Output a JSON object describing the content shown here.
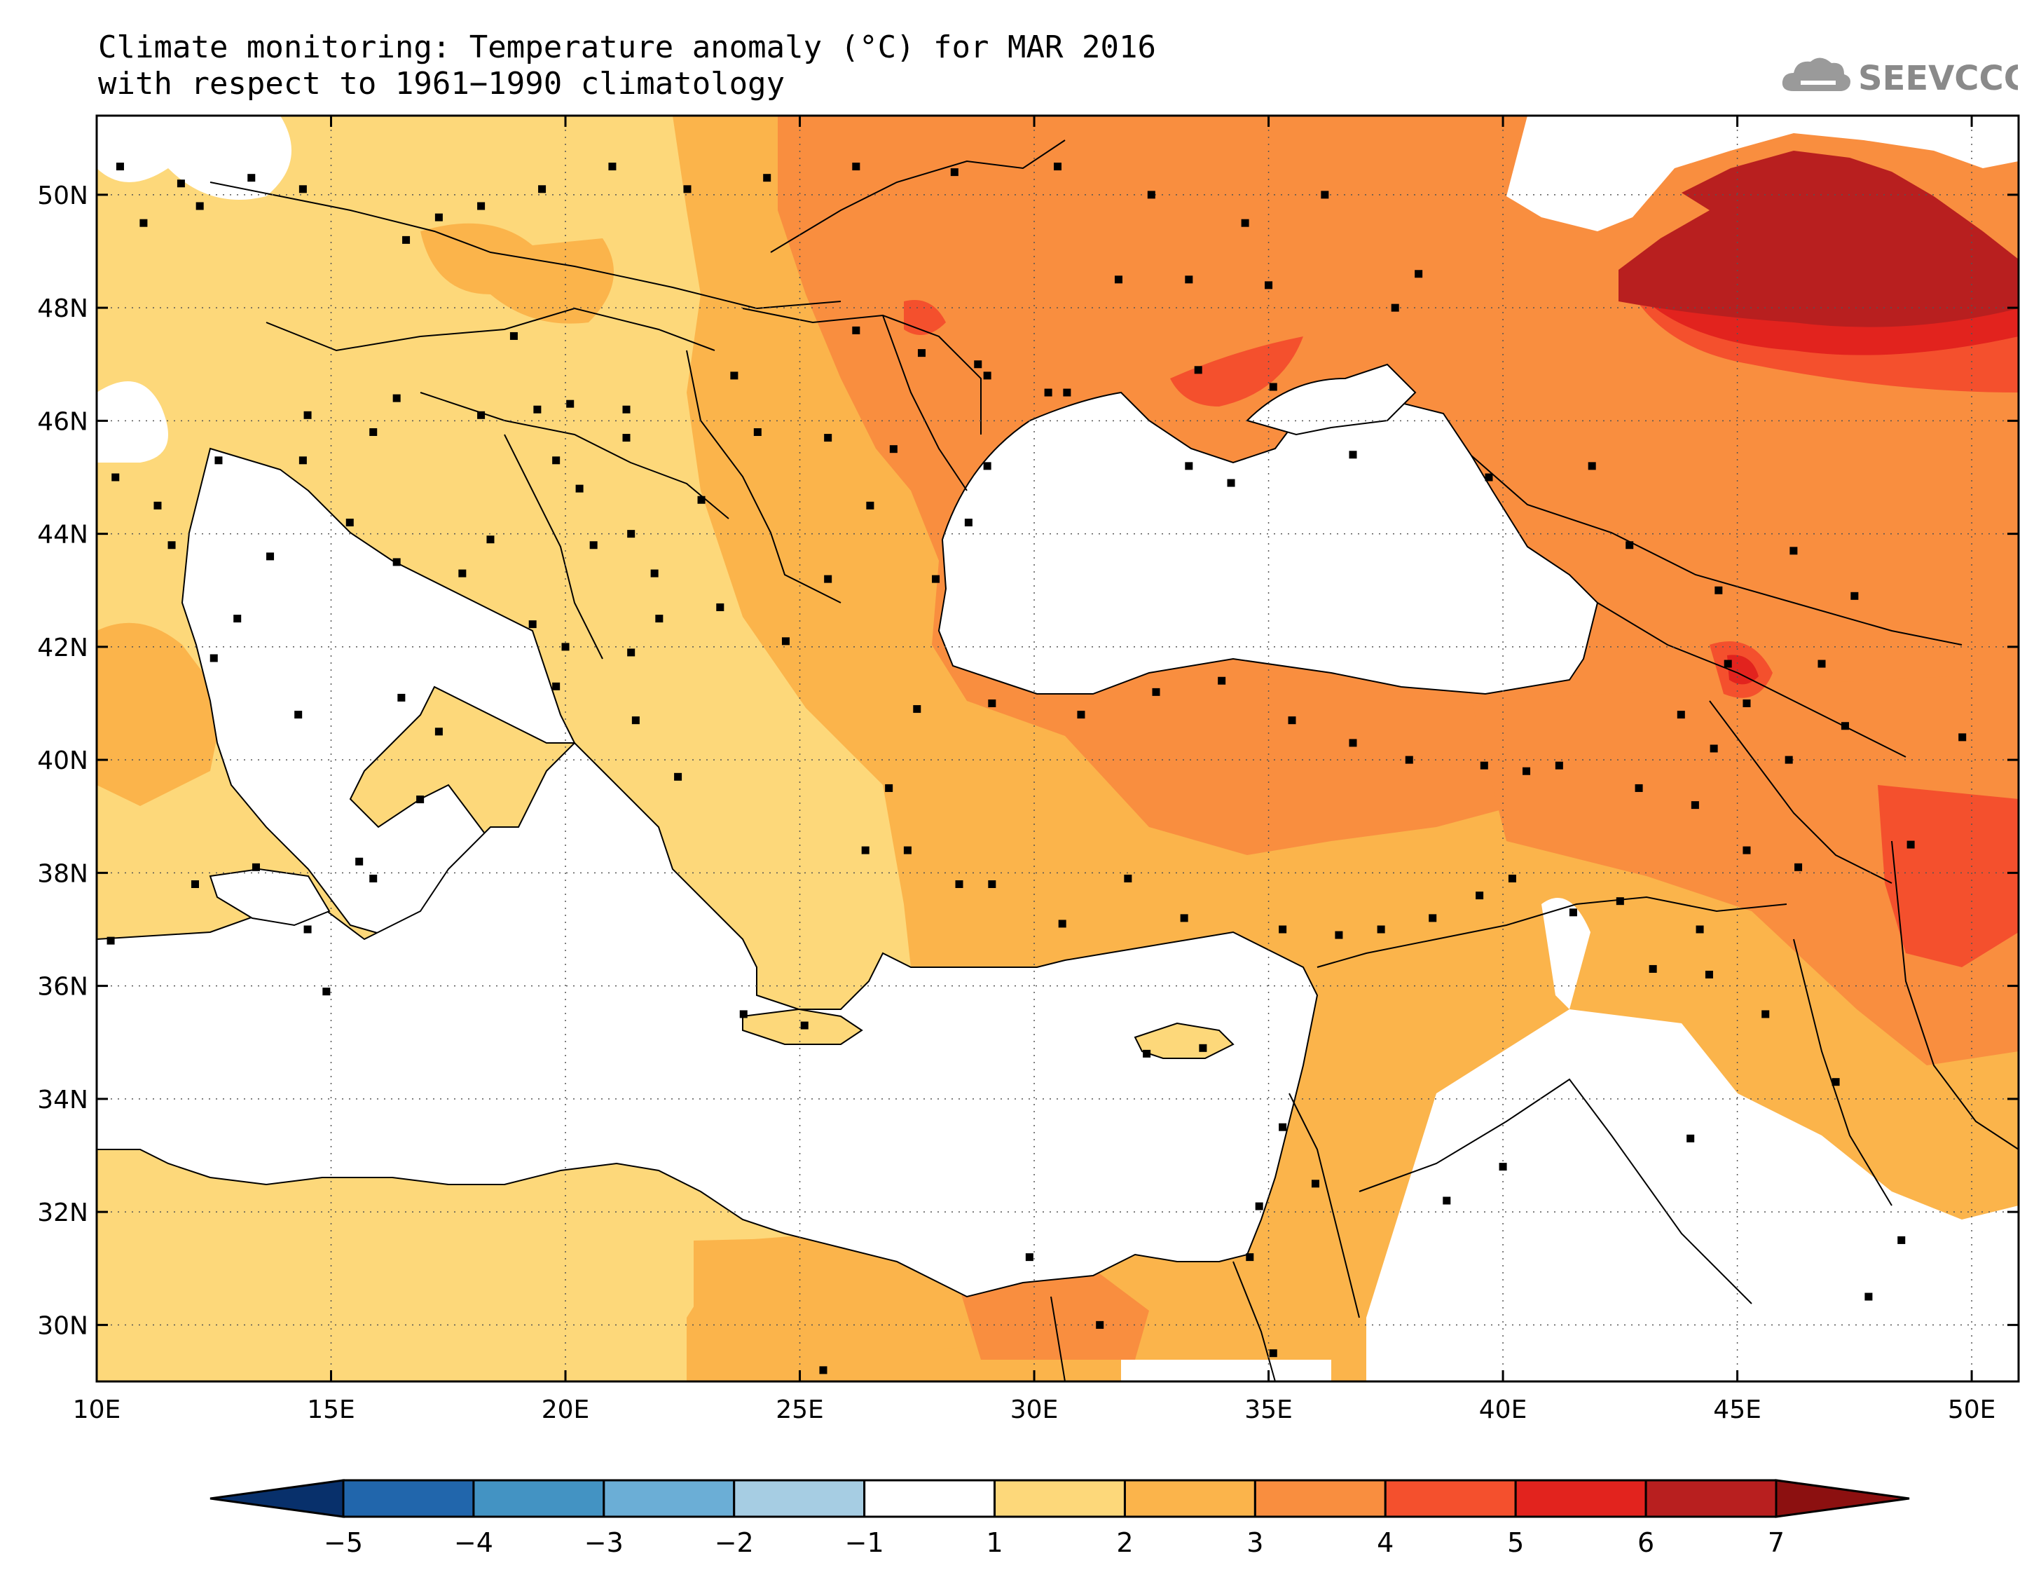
{
  "title": {
    "line1": "Climate monitoring: Temperature anomaly (°C) for MAR 2016",
    "line2": "with respect to 1961−1990 climatology"
  },
  "logo": {
    "text": "SEEVCCC",
    "icon": "cloud-icon"
  },
  "map": {
    "lon_range": [
      10,
      51
    ],
    "lat_range": [
      29,
      51.4
    ],
    "lon_ticks": [
      {
        "value": 10,
        "label": "10E"
      },
      {
        "value": 15,
        "label": "15E"
      },
      {
        "value": 20,
        "label": "20E"
      },
      {
        "value": 25,
        "label": "25E"
      },
      {
        "value": 30,
        "label": "30E"
      },
      {
        "value": 35,
        "label": "35E"
      },
      {
        "value": 40,
        "label": "40E"
      },
      {
        "value": 45,
        "label": "45E"
      },
      {
        "value": 50,
        "label": "50E"
      }
    ],
    "lat_ticks": [
      {
        "value": 50,
        "label": "50N"
      },
      {
        "value": 48,
        "label": "48N"
      },
      {
        "value": 46,
        "label": "46N"
      },
      {
        "value": 44,
        "label": "44N"
      },
      {
        "value": 42,
        "label": "42N"
      },
      {
        "value": 40,
        "label": "40N"
      },
      {
        "value": 38,
        "label": "38N"
      },
      {
        "value": 36,
        "label": "36N"
      },
      {
        "value": 34,
        "label": "34N"
      },
      {
        "value": 32,
        "label": "32N"
      },
      {
        "value": 30,
        "label": "30N"
      }
    ],
    "gridlines": true
  },
  "colorbar": {
    "labels": [
      "−5",
      "−4",
      "−3",
      "−2",
      "−1",
      "1",
      "2",
      "3",
      "4",
      "5",
      "6",
      "7"
    ],
    "colors": [
      "#08306b",
      "#2166ac",
      "#4393c3",
      "#6baed6",
      "#a6cde3",
      "#ffffff",
      "#fdd87a",
      "#fbb44b",
      "#f98e3f",
      "#f4502d",
      "#e2231e",
      "#b81f1f",
      "#8c1010"
    ]
  },
  "colors": {
    "bin_1_2": "#fdd87a",
    "bin_2_3": "#fbb44b",
    "bin_3_4": "#f98e3f",
    "bin_4_5": "#f4502d",
    "bin_5_6": "#e2231e",
    "bin_6_7": "#b81f1f",
    "land_outline": "#000000",
    "station": "#000000"
  },
  "stations": [
    [
      10.5,
      50.5
    ],
    [
      11,
      49.5
    ],
    [
      11.8,
      50.2
    ],
    [
      12.2,
      49.8
    ],
    [
      13.3,
      50.3
    ],
    [
      14.4,
      50.1
    ],
    [
      16.6,
      49.2
    ],
    [
      17.3,
      49.6
    ],
    [
      18.2,
      49.8
    ],
    [
      19.5,
      50.1
    ],
    [
      21,
      50.5
    ],
    [
      22.6,
      50.1
    ],
    [
      24.3,
      50.3
    ],
    [
      26.2,
      50.5
    ],
    [
      28.3,
      50.4
    ],
    [
      30.5,
      50.5
    ],
    [
      32.5,
      50
    ],
    [
      34.5,
      49.5
    ],
    [
      36.2,
      50
    ],
    [
      38.2,
      48.6
    ],
    [
      37.7,
      48
    ],
    [
      35,
      48.4
    ],
    [
      33.3,
      48.5
    ],
    [
      31.8,
      48.5
    ],
    [
      30.3,
      46.5
    ],
    [
      29,
      46.8
    ],
    [
      30.7,
      46.5
    ],
    [
      33.5,
      46.9
    ],
    [
      35.1,
      46.6
    ],
    [
      36.8,
      45.4
    ],
    [
      34.2,
      44.9
    ],
    [
      33.3,
      45.2
    ],
    [
      39.7,
      45
    ],
    [
      41.9,
      45.2
    ],
    [
      42.7,
      43.8
    ],
    [
      44.6,
      43
    ],
    [
      46.2,
      43.7
    ],
    [
      47.5,
      42.9
    ],
    [
      44.8,
      41.7
    ],
    [
      46.8,
      41.7
    ],
    [
      45.2,
      41
    ],
    [
      43.8,
      40.8
    ],
    [
      44.5,
      40.2
    ],
    [
      46.1,
      40
    ],
    [
      47.3,
      40.6
    ],
    [
      49.8,
      40.4
    ],
    [
      48.7,
      38.5
    ],
    [
      46.3,
      38.1
    ],
    [
      45.2,
      38.4
    ],
    [
      44.1,
      39.2
    ],
    [
      42.9,
      39.5
    ],
    [
      41.2,
      39.9
    ],
    [
      40.5,
      39.8
    ],
    [
      39.6,
      39.9
    ],
    [
      38,
      40
    ],
    [
      36.8,
      40.3
    ],
    [
      35.5,
      40.7
    ],
    [
      34,
      41.4
    ],
    [
      32.6,
      41.2
    ],
    [
      31,
      40.8
    ],
    [
      29.1,
      41
    ],
    [
      27.5,
      40.9
    ],
    [
      26.9,
      39.5
    ],
    [
      27.3,
      38.4
    ],
    [
      28.4,
      37.8
    ],
    [
      29.1,
      37.8
    ],
    [
      30.6,
      37.1
    ],
    [
      32,
      37.9
    ],
    [
      33.2,
      37.2
    ],
    [
      35.3,
      37
    ],
    [
      36.5,
      36.9
    ],
    [
      37.4,
      37
    ],
    [
      38.5,
      37.2
    ],
    [
      39.5,
      37.6
    ],
    [
      40.2,
      37.9
    ],
    [
      41.5,
      37.3
    ],
    [
      42.5,
      37.5
    ],
    [
      44.2,
      37
    ],
    [
      43.2,
      36.3
    ],
    [
      44.4,
      36.2
    ],
    [
      45.6,
      35.5
    ],
    [
      47.1,
      34.3
    ],
    [
      48.5,
      31.5
    ],
    [
      47.8,
      30.5
    ],
    [
      44,
      33.3
    ],
    [
      40,
      32.8
    ],
    [
      38.8,
      32.2
    ],
    [
      36,
      32.5
    ],
    [
      35.3,
      33.5
    ],
    [
      34.8,
      32.1
    ],
    [
      34.6,
      31.2
    ],
    [
      35.1,
      29.5
    ],
    [
      31.4,
      30
    ],
    [
      29.9,
      31.2
    ],
    [
      25.5,
      29.2
    ],
    [
      33.6,
      34.9
    ],
    [
      32.4,
      34.8
    ],
    [
      23.8,
      35.5
    ],
    [
      25.1,
      35.3
    ],
    [
      26.4,
      38.4
    ],
    [
      22.4,
      39.7
    ],
    [
      21.5,
      40.7
    ],
    [
      19.8,
      41.3
    ],
    [
      20,
      42
    ],
    [
      21.4,
      41.9
    ],
    [
      22,
      42.5
    ],
    [
      23.3,
      42.7
    ],
    [
      24.7,
      42.1
    ],
    [
      25.6,
      43.2
    ],
    [
      27.9,
      43.2
    ],
    [
      26.5,
      44.5
    ],
    [
      28.6,
      44.2
    ],
    [
      29,
      45.2
    ],
    [
      27,
      45.5
    ],
    [
      25.6,
      45.7
    ],
    [
      24.1,
      45.8
    ],
    [
      23.6,
      46.8
    ],
    [
      26.2,
      47.6
    ],
    [
      27.6,
      47.2
    ],
    [
      28.8,
      47
    ],
    [
      18.9,
      47.5
    ],
    [
      20.1,
      46.3
    ],
    [
      21.3,
      46.2
    ],
    [
      19.4,
      46.2
    ],
    [
      18.2,
      46.1
    ],
    [
      16.4,
      46.4
    ],
    [
      14.5,
      46.1
    ],
    [
      15.9,
      45.8
    ],
    [
      14.4,
      45.3
    ],
    [
      15.4,
      44.2
    ],
    [
      16.4,
      43.5
    ],
    [
      18.4,
      43.9
    ],
    [
      17.8,
      43.3
    ],
    [
      19.3,
      42.4
    ],
    [
      20.3,
      44.8
    ],
    [
      21.4,
      44
    ],
    [
      21.9,
      43.3
    ],
    [
      20.6,
      43.8
    ],
    [
      19.8,
      45.3
    ],
    [
      21.3,
      45.7
    ],
    [
      22.9,
      44.6
    ],
    [
      12.5,
      41.8
    ],
    [
      14.3,
      40.8
    ],
    [
      16.5,
      41.1
    ],
    [
      17.3,
      40.5
    ],
    [
      15.6,
      38.2
    ],
    [
      13.4,
      38.1
    ],
    [
      14.5,
      37
    ],
    [
      11.6,
      43.8
    ],
    [
      11.3,
      44.5
    ],
    [
      12.6,
      45.3
    ],
    [
      10.4,
      45
    ],
    [
      9.8,
      43.7
    ],
    [
      13.7,
      43.6
    ],
    [
      13,
      42.5
    ],
    [
      16.9,
      39.3
    ],
    [
      15.9,
      37.9
    ],
    [
      14.9,
      35.9
    ],
    [
      12.1,
      37.8
    ],
    [
      10.3,
      36.8
    ]
  ]
}
